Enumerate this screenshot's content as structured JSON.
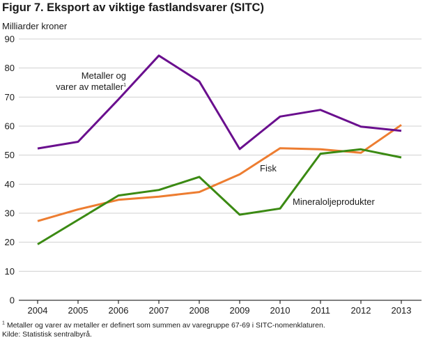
{
  "chart_data": {
    "type": "line",
    "title": "Figur 7. Eksport av viktige fastlandsvarer (SITC)",
    "ylabel": "Milliarder kroner",
    "xlabel": "",
    "ylim": [
      0,
      90
    ],
    "yticks": [
      0,
      10,
      20,
      30,
      40,
      50,
      60,
      70,
      80,
      90
    ],
    "categories": [
      "2004",
      "2005",
      "2006",
      "2007",
      "2008",
      "2009",
      "2010",
      "2011",
      "2012",
      "2013"
    ],
    "grid": true,
    "series": [
      {
        "name": "Metaller og varer av metaller",
        "label_lines": [
          "Metaller og",
          "varer av metaller"
        ],
        "footnote_mark": "1",
        "color": "#6a0f8e",
        "values": [
          52.3,
          54.6,
          69.2,
          84.3,
          75.4,
          52.1,
          63.3,
          65.6,
          59.8,
          58.4
        ]
      },
      {
        "name": "Fisk",
        "label_lines": [
          "Fisk"
        ],
        "color": "#ed7d31",
        "values": [
          27.3,
          31.3,
          34.6,
          35.7,
          37.3,
          43.4,
          52.4,
          52.0,
          50.8,
          60.4
        ]
      },
      {
        "name": "Mineraloljeprodukter",
        "label_lines": [
          "Mineraloljeprodukter"
        ],
        "color": "#3b8a13",
        "values": [
          19.3,
          27.7,
          36.1,
          38.0,
          42.5,
          29.5,
          31.6,
          50.5,
          52.0,
          49.2
        ]
      }
    ],
    "footnote": "Metaller og varer av metaller er definert som summen av varegruppe 67-69 i SITC-nomenklaturen.",
    "footnote_mark": "1",
    "source": "Kilde: Statistisk sentralbyrå."
  }
}
